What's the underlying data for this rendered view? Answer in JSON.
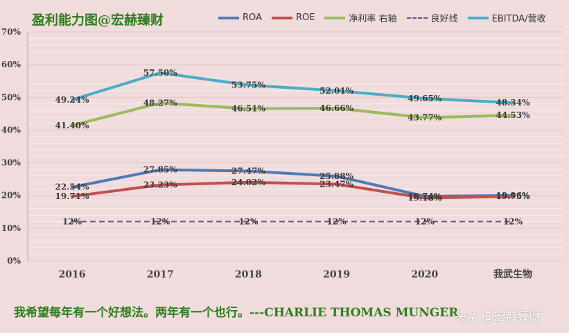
{
  "chart_data": {
    "type": "line",
    "title": "盈利能力图@宏赫臻财",
    "categories": [
      "2016",
      "2017",
      "2018",
      "2019",
      "2020",
      "我武生物"
    ],
    "ylim": [
      0,
      70
    ],
    "yticks": [
      "0%",
      "10%",
      "20%",
      "30%",
      "40%",
      "50%",
      "60%",
      "70%"
    ],
    "legend_position": "top-right",
    "series": [
      {
        "name": "ROA",
        "color": "#4f7ab5",
        "dashed": false,
        "width": 4,
        "values": [
          22.54,
          27.85,
          27.47,
          25.88,
          19.74,
          19.96
        ],
        "labels": [
          "22.54%",
          "27.85%",
          "27.47%",
          "25.88%",
          "19.74%",
          "19.96%"
        ]
      },
      {
        "name": "ROE",
        "color": "#c0504d",
        "dashed": false,
        "width": 4,
        "values": [
          19.71,
          23.23,
          24.02,
          23.47,
          19.18,
          19.75
        ],
        "labels": [
          "19.71%",
          "23.23%",
          "24.02%",
          "23.47%",
          "19.18%",
          "19.75%"
        ]
      },
      {
        "name": "净利率 右轴",
        "color": "#9bbb59",
        "dashed": false,
        "width": 4,
        "values": [
          41.4,
          48.27,
          46.51,
          46.66,
          43.77,
          44.53
        ],
        "labels": [
          "41.40%",
          "48.27%",
          "46.51%",
          "46.66%",
          "43.77%",
          "44.53%"
        ]
      },
      {
        "name": "良好线",
        "color": "#6b4e86",
        "dashed": true,
        "width": 2,
        "values": [
          12,
          12,
          12,
          12,
          12,
          12
        ],
        "labels": [
          "12%",
          "12%",
          "12%",
          "12%",
          "12%",
          "12%"
        ]
      },
      {
        "name": "EBITDA/营收",
        "color": "#4bacc6",
        "dashed": false,
        "width": 4,
        "values": [
          49.24,
          57.5,
          53.75,
          52.01,
          49.65,
          48.34
        ],
        "labels": [
          "49.24%",
          "57.50%",
          "53.75%",
          "52.01%",
          "49.65%",
          "48.34%"
        ]
      }
    ]
  },
  "footer": {
    "quote": "我希望每年有一个好想法。两年有一个也行。---CHARLIE THOMAS MUNGER",
    "watermark": "头条 @宏赫臻财"
  }
}
